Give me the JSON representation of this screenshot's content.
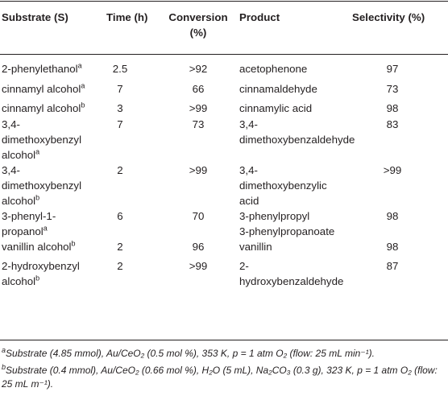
{
  "table": {
    "headers": {
      "substrate": "Substrate (S)",
      "time": "Time (h)",
      "conversion": "Conversion\n(%)",
      "product": "Product",
      "selectivity": "Selectivity (%)"
    },
    "rows": [
      {
        "substrate": "2-phenylethanol",
        "sup": "a",
        "time": "2.5",
        "conversion": ">92",
        "product": "acetophenone",
        "selectivity": "97"
      },
      {
        "substrate": "cinnamyl alcohol",
        "sup": "a",
        "time": "7",
        "conversion": "66",
        "product": "cinnamaldehyde",
        "selectivity": "73"
      },
      {
        "substrate": "cinnamyl alcohol",
        "sup": "b",
        "time": "3",
        "conversion": ">99",
        "product": "cinnamylic acid",
        "selectivity": "98"
      },
      {
        "substrate": "3,4-\ndimethoxybenzyl\nalcohol",
        "sup": "a",
        "time": "7",
        "conversion": "73",
        "product": "3,4-\ndimethoxybenzaldehyde",
        "selectivity": "83"
      },
      {
        "substrate": "3,4-\ndimethoxybenzyl\nalcohol",
        "sup": "b",
        "time": "2",
        "conversion": ">99",
        "product": "3,4-\ndimethoxybenzylic\nacid",
        "selectivity": ">99"
      },
      {
        "substrate": "3-phenyl-1-\npropanol",
        "sup": "a",
        "time": "6",
        "conversion": "70",
        "product": "3-phenylpropyl\n3-phenylpropanoate",
        "selectivity": "98"
      },
      {
        "substrate": "vanillin alcohol",
        "sup": "b",
        "time": "2",
        "conversion": "96",
        "product": "vanillin",
        "selectivity": "98"
      },
      {
        "substrate": "2-hydroxybenzyl\nalcohol",
        "sup": "b",
        "time": "2",
        "conversion": ">99",
        "product": "2-\nhydroxybenzaldehyde",
        "selectivity": "87"
      }
    ]
  },
  "footnotes": {
    "a": {
      "mark": "a",
      "text": "Substrate (4.85 mmol), Au/CeO₂ (0.5 mol %), 353 K, p = 1 atm O₂ (flow: 25 mL min⁻¹)."
    },
    "b": {
      "mark": "b",
      "text": "Substrate (0.4 mmol), Au/CeO₂ (0.66 mol %), H₂O (5 mL), Na₂CO₃ (0.3 g), 323 K, p = 1 atm O₂ (flow: 25 mL m⁻¹)."
    }
  }
}
